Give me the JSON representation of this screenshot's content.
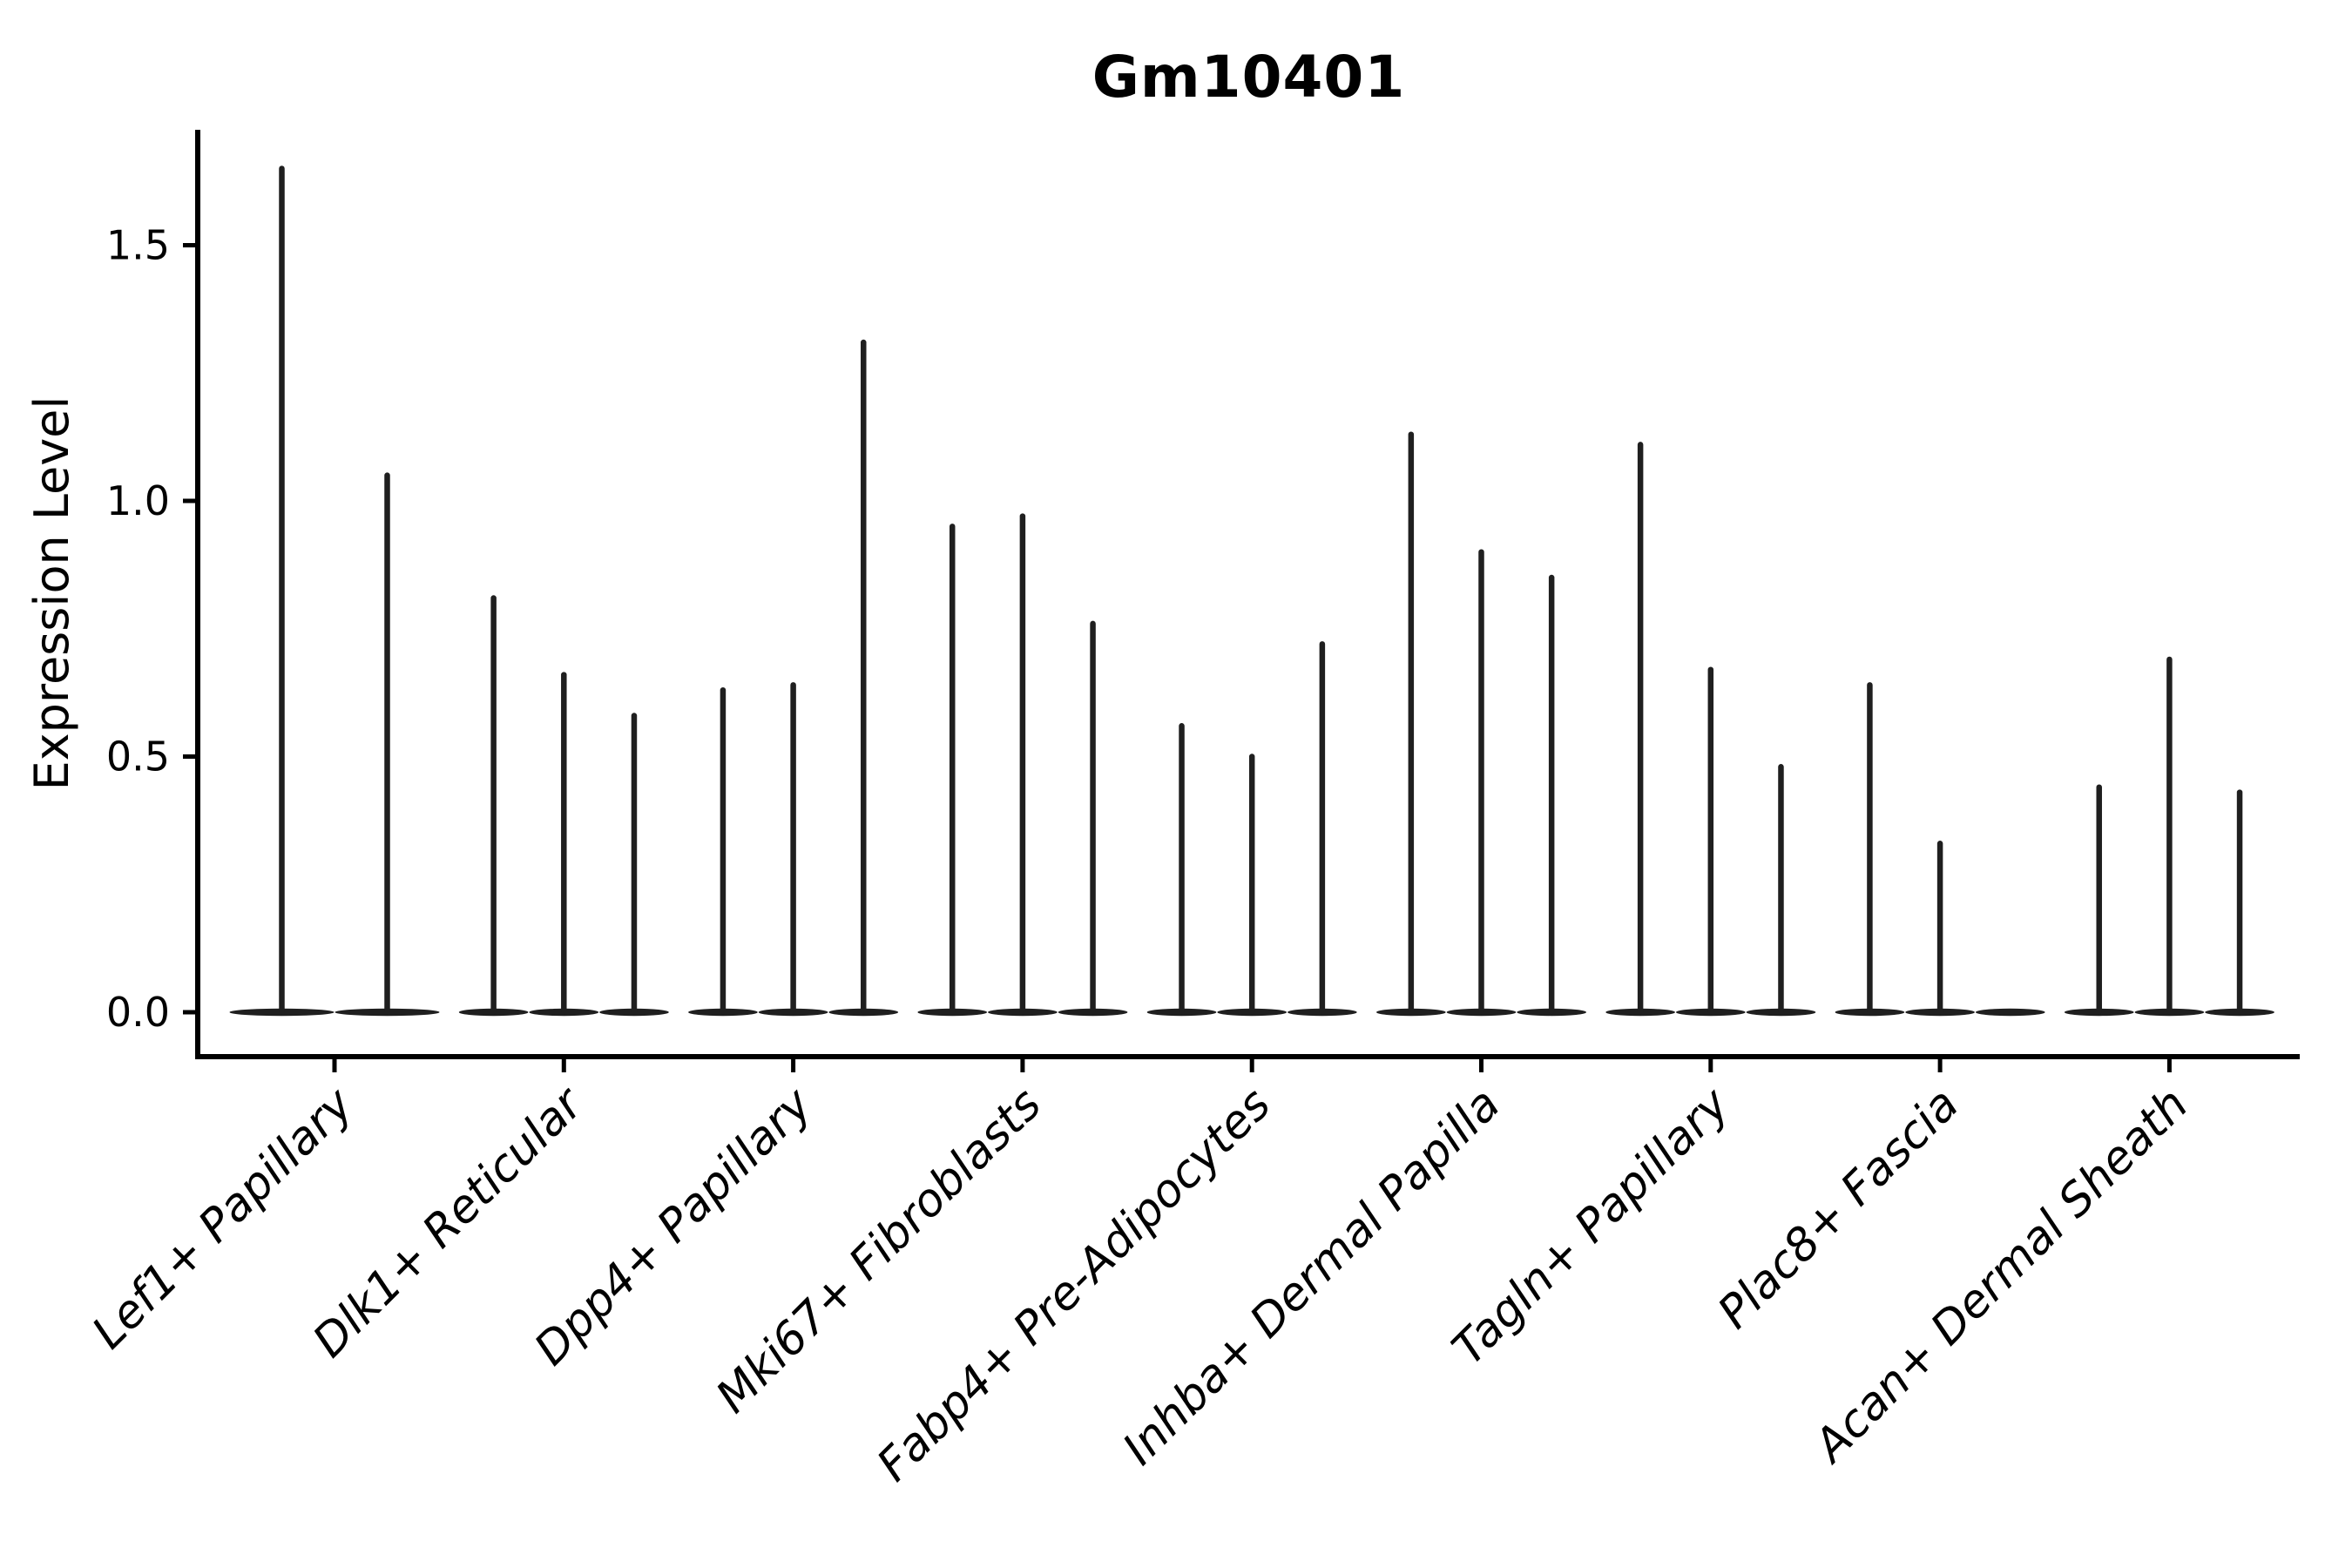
{
  "chart_data": {
    "type": "violin",
    "title": "Gm10401",
    "ylabel": "Expression Level",
    "xlabel": "",
    "yticks": [
      0.0,
      0.5,
      1.0,
      1.5
    ],
    "ylim": [
      -0.09,
      1.73
    ],
    "grid": false,
    "legend_position": "none",
    "background_color": "#ffffff",
    "axis_color": "#000000",
    "violin_color": "#1f1f1f",
    "categories": [
      "Lef1+ Papillary",
      "Dlk1+ Reticular",
      "Dpp4+ Papillary",
      "Mki67+ Fibroblasts",
      "Fabp4+ Pre-Adipocytes",
      "Inhba+ Dermal Papilla",
      "Tagln+ Papillary",
      "Plac8+ Fascia",
      "Acan+ Dermal Sheath"
    ],
    "groups": [
      {
        "label": "Lef1+ Papillary",
        "violin_maxima": [
          1.65,
          1.05
        ]
      },
      {
        "label": "Dlk1+ Reticular",
        "violin_maxima": [
          0.81,
          0.66,
          0.58
        ]
      },
      {
        "label": "Dpp4+ Papillary",
        "violin_maxima": [
          0.63,
          0.64,
          1.31
        ]
      },
      {
        "label": "Mki67+ Fibroblasts",
        "violin_maxima": [
          0.95,
          0.97,
          0.76
        ]
      },
      {
        "label": "Fabp4+ Pre-Adipocytes",
        "violin_maxima": [
          0.56,
          0.5,
          0.72
        ]
      },
      {
        "label": "Inhba+ Dermal Papilla",
        "violin_maxima": [
          1.13,
          0.9,
          0.85
        ]
      },
      {
        "label": "Tagln+ Papillary",
        "violin_maxima": [
          1.11,
          0.67,
          0.48
        ]
      },
      {
        "label": "Plac8+ Fascia",
        "violin_maxima": [
          0.64,
          0.33,
          0.0
        ]
      },
      {
        "label": "Acan+ Dermal Sheath",
        "violin_maxima": [
          0.44,
          0.69,
          0.43
        ]
      }
    ],
    "description_of_zero_line": "each violin has a wide flat base at expression 0 and a thin spike up to its maximum"
  }
}
